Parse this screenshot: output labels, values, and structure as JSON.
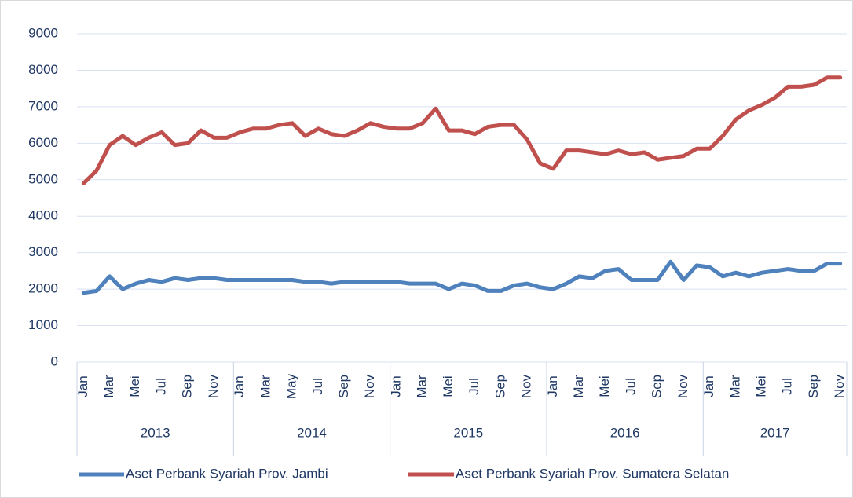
{
  "chart_data": {
    "type": "line",
    "groups": [
      {
        "label": "2013",
        "categories": [
          "Jan",
          null,
          "Mar",
          null,
          "Mei",
          null,
          "Jul",
          null,
          "Sep",
          null,
          "Nov",
          null
        ]
      },
      {
        "label": "2014",
        "categories": [
          "Jan",
          null,
          "Mar",
          null,
          "May",
          null,
          "Jul",
          null,
          "Sep",
          null,
          "Nov",
          null
        ]
      },
      {
        "label": "2015",
        "categories": [
          "Jan",
          null,
          "Mar",
          null,
          "Mei",
          null,
          "Jul",
          null,
          "Sep",
          null,
          "Nov",
          null
        ]
      },
      {
        "label": "2016",
        "categories": [
          "Jan",
          null,
          "Mar",
          null,
          "Mei",
          null,
          "Jul",
          null,
          "Sep",
          null,
          "Nov",
          null
        ]
      },
      {
        "label": "2017",
        "categories": [
          "Jan",
          null,
          "Mar",
          null,
          "Mei",
          null,
          "Jul",
          null,
          "Sep",
          null,
          "Nov"
        ]
      }
    ],
    "series": [
      {
        "name": "Aset Perbank Syariah Prov. Jambi",
        "color": "#4f81bd",
        "values": [
          1900,
          1950,
          2350,
          2000,
          2150,
          2250,
          2200,
          2300,
          2250,
          2300,
          2300,
          2250,
          2250,
          2250,
          2250,
          2250,
          2250,
          2200,
          2200,
          2150,
          2200,
          2200,
          2200,
          2200,
          2200,
          2150,
          2150,
          2150,
          2000,
          2150,
          2100,
          1950,
          1950,
          2100,
          2150,
          2050,
          2000,
          2150,
          2350,
          2300,
          2500,
          2550,
          2250,
          2250,
          2250,
          2750,
          2250,
          2650,
          2600,
          2350,
          2450,
          2350,
          2450,
          2500,
          2550,
          2500,
          2500,
          2700,
          2700
        ]
      },
      {
        "name": "Aset Perbank Syariah Prov. Sumatera Selatan",
        "color": "#c0504d",
        "values": [
          4900,
          5250,
          5950,
          6200,
          5950,
          6150,
          6300,
          5950,
          6000,
          6350,
          6150,
          6150,
          6300,
          6400,
          6400,
          6500,
          6550,
          6200,
          6400,
          6250,
          6200,
          6350,
          6550,
          6450,
          6400,
          6400,
          6550,
          6950,
          6350,
          6350,
          6250,
          6450,
          6500,
          6500,
          6100,
          5450,
          5300,
          5800,
          5800,
          5750,
          5700,
          5800,
          5700,
          5750,
          5550,
          5600,
          5650,
          5850,
          5850,
          6200,
          6650,
          6900,
          7050,
          7250,
          7550,
          7550,
          7600,
          7800,
          7800
        ]
      }
    ],
    "ylim": [
      0,
      9000
    ],
    "yticks": [
      0,
      1000,
      2000,
      3000,
      4000,
      5000,
      6000,
      7000,
      8000,
      9000
    ],
    "grid": true,
    "legend": "bottom"
  }
}
